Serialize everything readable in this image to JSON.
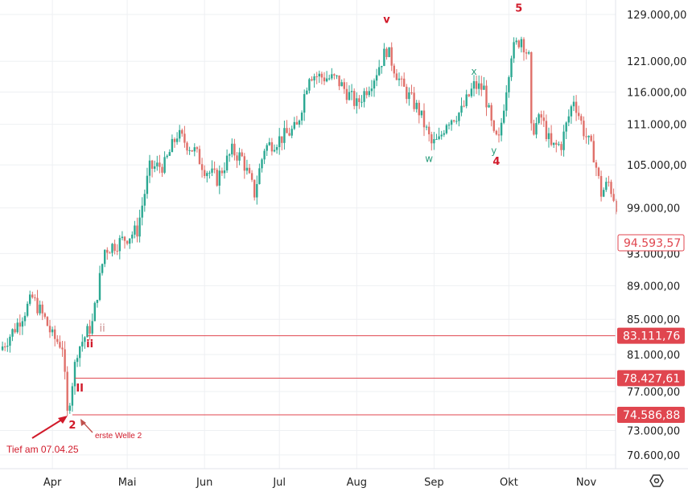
{
  "chart_data": {
    "type": "candlestick",
    "title": "",
    "scale": "log",
    "ylim": [
      69500,
      131000
    ],
    "y_ticks": [
      {
        "value": 129000,
        "label": "129.000,00"
      },
      {
        "value": 121000,
        "label": "121.000,00"
      },
      {
        "value": 116000,
        "label": "116.000,00"
      },
      {
        "value": 111000,
        "label": "111.000,00"
      },
      {
        "value": 105000,
        "label": "105.000,00"
      },
      {
        "value": 99000,
        "label": "99.000,00"
      },
      {
        "value": 93000,
        "label": "93.000,00"
      },
      {
        "value": 89000,
        "label": "89.000,00"
      },
      {
        "value": 85000,
        "label": "85.000,00"
      },
      {
        "value": 81000,
        "label": "81.000,00"
      },
      {
        "value": 77000,
        "label": "77.000,00"
      },
      {
        "value": 73000,
        "label": "73.000,00"
      },
      {
        "value": 70600,
        "label": "70.600,00"
      }
    ],
    "x_unit": "days since 11 Mar 2025",
    "x_range": [
      0,
      247
    ],
    "months": [
      {
        "day": 21,
        "label": "Apr"
      },
      {
        "day": 51,
        "label": "Mai"
      },
      {
        "day": 82,
        "label": "Jun"
      },
      {
        "day": 112,
        "label": "Jul"
      },
      {
        "day": 143,
        "label": "Aug"
      },
      {
        "day": 174,
        "label": "Sep"
      },
      {
        "day": 204,
        "label": "Okt"
      },
      {
        "day": 235,
        "label": "Nov"
      }
    ],
    "price_path": [
      [
        0,
        81500
      ],
      [
        6,
        84000
      ],
      [
        13,
        87500
      ],
      [
        18,
        85000
      ],
      [
        21,
        83000
      ],
      [
        25,
        82000
      ],
      [
        27,
        74600
      ],
      [
        31,
        81500
      ],
      [
        37,
        84500
      ],
      [
        42,
        93500
      ],
      [
        48,
        94500
      ],
      [
        55,
        96000
      ],
      [
        60,
        104500
      ],
      [
        66,
        105000
      ],
      [
        71,
        109500
      ],
      [
        78,
        107000
      ],
      [
        82,
        104500
      ],
      [
        87,
        103000
      ],
      [
        93,
        107000
      ],
      [
        97,
        106000
      ],
      [
        102,
        101000
      ],
      [
        106,
        107500
      ],
      [
        113,
        109000
      ],
      [
        119,
        110500
      ],
      [
        124,
        119000
      ],
      [
        128,
        118500
      ],
      [
        135,
        118000
      ],
      [
        143,
        114000
      ],
      [
        150,
        118500
      ],
      [
        155,
        123000
      ],
      [
        161,
        117000
      ],
      [
        168,
        113000
      ],
      [
        173,
        108000
      ],
      [
        176,
        108500
      ],
      [
        179,
        111500
      ],
      [
        185,
        113000
      ],
      [
        190,
        117000
      ],
      [
        194,
        116500
      ],
      [
        198,
        109000
      ],
      [
        200,
        108500
      ],
      [
        205,
        122500
      ],
      [
        209,
        125000
      ],
      [
        212,
        121500
      ],
      [
        213,
        110000
      ],
      [
        217,
        112000
      ],
      [
        221,
        107500
      ],
      [
        225,
        108000
      ],
      [
        230,
        115000
      ],
      [
        234,
        110000
      ],
      [
        238,
        106500
      ],
      [
        241,
        101000
      ],
      [
        244,
        102500
      ],
      [
        247,
        99500
      ]
    ],
    "current_price": {
      "value": 94593.57,
      "label": "94.593,57",
      "color": "#e0464f"
    },
    "levels": [
      {
        "value": 83111.76,
        "label": "83.111,76",
        "start_day": 35
      },
      {
        "value": 78427.61,
        "label": "78.427,61",
        "start_day": 30
      },
      {
        "value": 74586.88,
        "label": "74.586,88",
        "start_day": 29
      }
    ],
    "wave_labels": [
      {
        "text": "v",
        "day": 155,
        "price": 127500,
        "style": "red"
      },
      {
        "text": "5",
        "day": 208,
        "price": 129500,
        "style": "red"
      },
      {
        "text": "x",
        "day": 190,
        "price": 118800,
        "style": "green"
      },
      {
        "text": "w",
        "day": 172,
        "price": 105400,
        "style": "green"
      },
      {
        "text": "y",
        "day": 198,
        "price": 106600,
        "style": "green"
      },
      {
        "text": "4",
        "day": 199,
        "price": 105000,
        "style": "red"
      },
      {
        "text": "ii",
        "day": 41,
        "price": 83600,
        "style": "small"
      },
      {
        "text": "ii",
        "day": 36,
        "price": 81800,
        "style": "red"
      },
      {
        "text": "II",
        "day": 32,
        "price": 77000,
        "style": "red"
      },
      {
        "text": "2",
        "day": 29,
        "price": 73200,
        "style": "red"
      }
    ],
    "annotations": [
      {
        "text": "Tief am 07.04.25"
      },
      {
        "text": "erste Welle 2"
      }
    ],
    "colors": {
      "up": "#2ba892",
      "down": "#e0706a",
      "level": "#e0464f",
      "grid": "#eef0f3"
    }
  },
  "toolbar": {
    "settings_icon": "settings-icon"
  }
}
